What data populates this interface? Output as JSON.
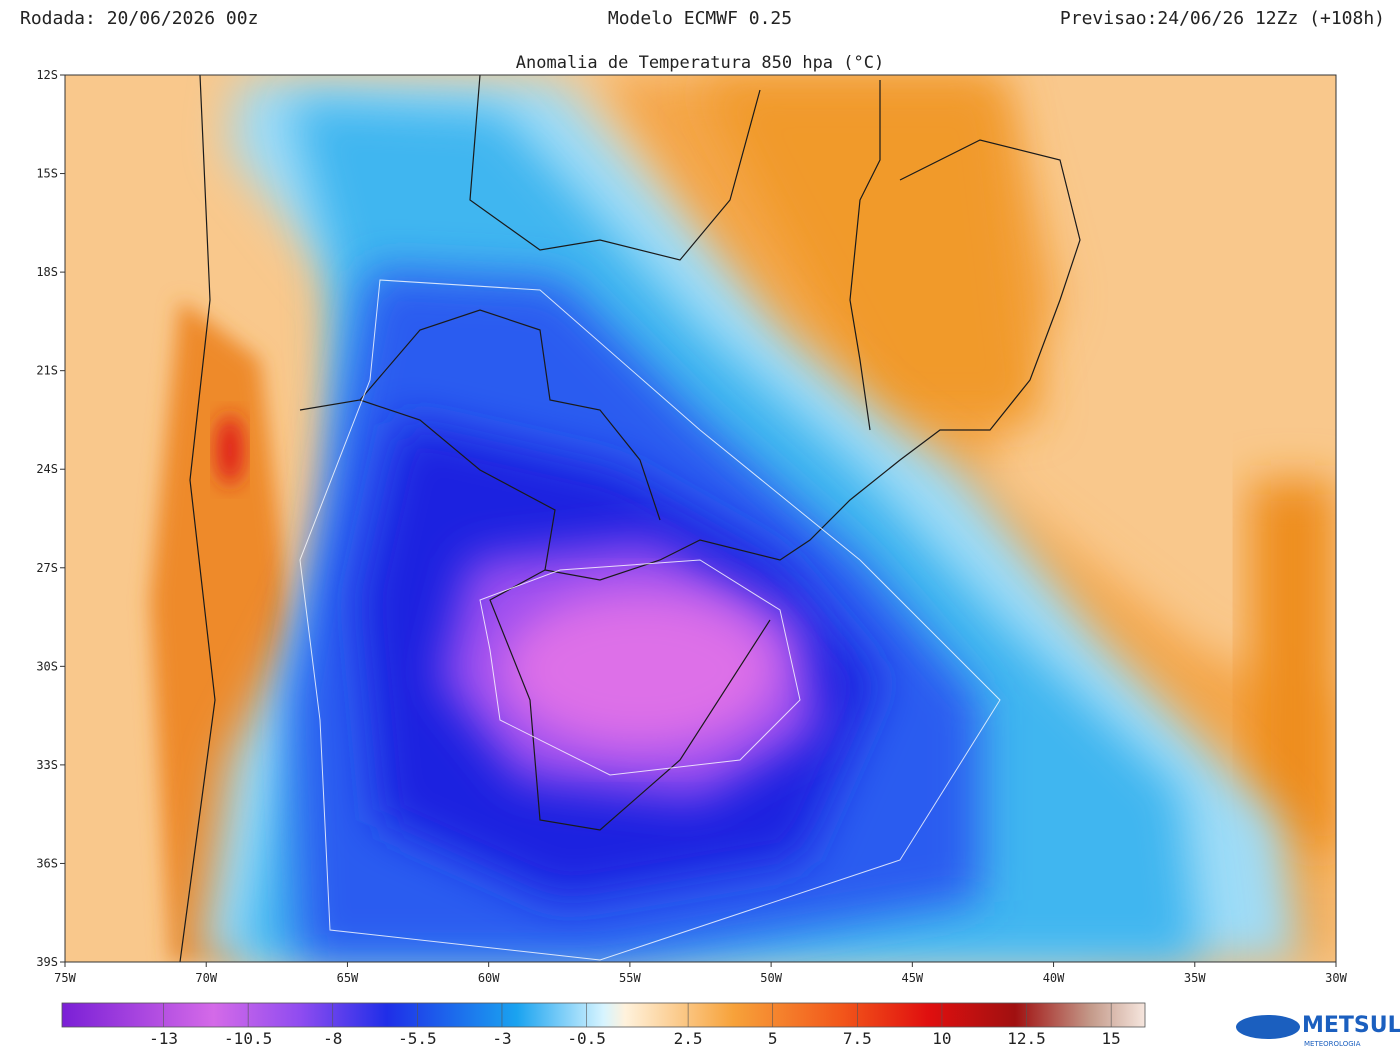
{
  "header": {
    "run": "Rodada: 20/06/2026 00z",
    "model": "Modelo ECMWF 0.25",
    "forecast": "Previsao:24/06/26 12Zz (+108h)"
  },
  "title": "Anomalia de Temperatura 850 hpa (°C)",
  "lat_labels": [
    "12S",
    "15S",
    "18S",
    "21S",
    "24S",
    "27S",
    "30S",
    "33S",
    "36S",
    "39S"
  ],
  "lon_labels": [
    "75W",
    "70W",
    "65W",
    "60W",
    "55W",
    "50W",
    "45W",
    "40W",
    "35W",
    "30W"
  ],
  "colorbar": {
    "range": [
      -16,
      16
    ],
    "ticks": [
      -13,
      -10.5,
      -8,
      -5.5,
      -3,
      -0.5,
      2.5,
      5,
      7.5,
      10,
      12.5,
      15
    ]
  },
  "logo": {
    "name": "METSUL",
    "tagline": "METEOROLOGIA"
  }
}
